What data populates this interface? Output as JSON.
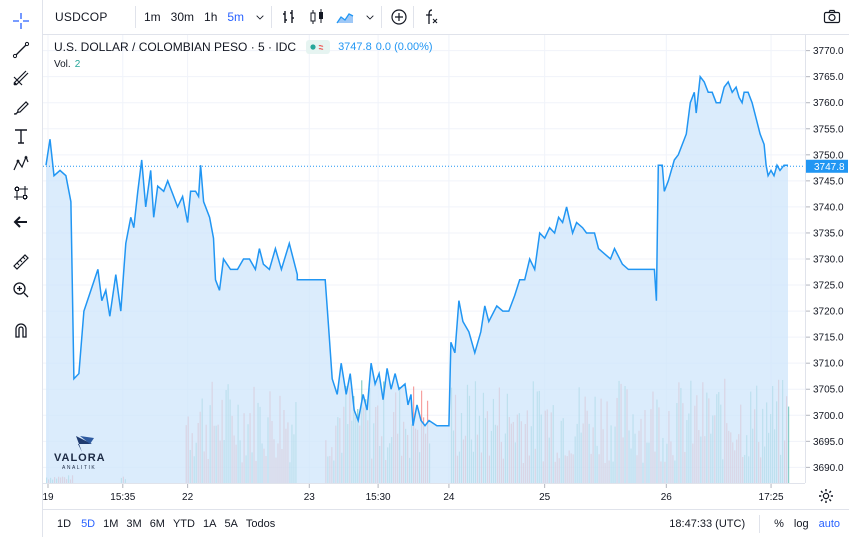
{
  "toolbar": {
    "symbol": "USDCOP",
    "intervals": [
      "1m",
      "30m",
      "1h",
      "5m"
    ],
    "active_interval": "5m"
  },
  "legend": {
    "title": "U.S. DOLLAR / COLOMBIAN PESO · 5 · IDC",
    "last": "3747.8",
    "change": "0.0 (0.00%)",
    "volume_label": "Vol.",
    "volume_value": "2"
  },
  "logo": {
    "name": "VALORA",
    "sub": "ANALITIK"
  },
  "bottom": {
    "ranges": [
      "1D",
      "5D",
      "1M",
      "3M",
      "6M",
      "YTD",
      "1A",
      "5A",
      "Todos"
    ],
    "active_range": "5D",
    "clock": "18:47:33 (UTC)",
    "percent": "%",
    "log": "log",
    "auto": "auto"
  },
  "colors": {
    "line": "#2196f3",
    "fill": "#cfe6fb",
    "vol_up": "#26a69a",
    "vol_down": "#ef5350",
    "grid": "#f0f3fa"
  },
  "chart_data": {
    "type": "area",
    "title": "U.S. DOLLAR / COLOMBIAN PESO · 5 · IDC",
    "ylim": [
      3687,
      3773
    ],
    "yticks": [
      3690,
      3695,
      3700,
      3705,
      3710,
      3715,
      3720,
      3725,
      3730,
      3735,
      3740,
      3745,
      3750,
      3755,
      3760,
      3765,
      3770
    ],
    "last_price": 3747.8,
    "xticks": [
      {
        "label": "19",
        "index": 2
      },
      {
        "label": "15:35",
        "index": 77
      },
      {
        "label": "22",
        "index": 142
      },
      {
        "label": "23",
        "index": 264
      },
      {
        "label": "15:30",
        "index": 333
      },
      {
        "label": "24",
        "index": 404
      },
      {
        "label": "25",
        "index": 500
      },
      {
        "label": "26",
        "index": 622
      },
      {
        "label": "17:25",
        "index": 727
      }
    ],
    "n_points": 745,
    "series": [
      {
        "name": "USDCOP",
        "points": [
          [
            0,
            3748
          ],
          [
            4,
            3753
          ],
          [
            8,
            3746
          ],
          [
            14,
            3747
          ],
          [
            20,
            3746
          ],
          [
            25,
            3741
          ],
          [
            28,
            3707
          ],
          [
            33,
            3708
          ],
          [
            38,
            3720
          ],
          [
            45,
            3724
          ],
          [
            52,
            3728
          ],
          [
            56,
            3722
          ],
          [
            60,
            3724
          ],
          [
            64,
            3719
          ],
          [
            70,
            3727
          ],
          [
            75,
            3720
          ],
          [
            80,
            3733
          ],
          [
            85,
            3738
          ],
          [
            88,
            3736
          ],
          [
            92,
            3743
          ],
          [
            96,
            3749
          ],
          [
            100,
            3740
          ],
          [
            105,
            3747
          ],
          [
            108,
            3738
          ],
          [
            112,
            3744
          ],
          [
            118,
            3743
          ],
          [
            122,
            3745
          ],
          [
            128,
            3742
          ],
          [
            132,
            3740
          ],
          [
            137,
            3742
          ],
          [
            142,
            3737
          ],
          [
            145,
            3743
          ],
          [
            150,
            3743
          ],
          [
            153,
            3742
          ],
          [
            155,
            3748
          ],
          [
            158,
            3741
          ],
          [
            164,
            3738
          ],
          [
            168,
            3734
          ],
          [
            170,
            3726
          ],
          [
            174,
            3724
          ],
          [
            178,
            3730
          ],
          [
            185,
            3728
          ],
          [
            192,
            3728
          ],
          [
            198,
            3730
          ],
          [
            204,
            3730
          ],
          [
            210,
            3728
          ],
          [
            214,
            3732
          ],
          [
            218,
            3729
          ],
          [
            224,
            3728
          ],
          [
            230,
            3732
          ],
          [
            236,
            3728
          ],
          [
            244,
            3733
          ],
          [
            252,
            3727
          ],
          [
            252,
            3726
          ],
          [
            262,
            3726
          ],
          [
            280,
            3726
          ],
          [
            283,
            3718
          ],
          [
            287,
            3707
          ],
          [
            292,
            3704
          ],
          [
            296,
            3710
          ],
          [
            301,
            3704
          ],
          [
            305,
            3708
          ],
          [
            309,
            3701
          ],
          [
            313,
            3699
          ],
          [
            318,
            3704
          ],
          [
            322,
            3701
          ],
          [
            326,
            3710
          ],
          [
            330,
            3706
          ],
          [
            334,
            3708
          ],
          [
            338,
            3703
          ],
          [
            342,
            3709
          ],
          [
            346,
            3705
          ],
          [
            350,
            3708
          ],
          [
            354,
            3705
          ],
          [
            360,
            3706
          ],
          [
            363,
            3702
          ],
          [
            366,
            3704
          ],
          [
            368,
            3698
          ],
          [
            372,
            3702
          ],
          [
            376,
            3699
          ],
          [
            380,
            3698
          ],
          [
            384,
            3699
          ],
          [
            392,
            3698
          ],
          [
            404,
            3698
          ],
          [
            406,
            3714
          ],
          [
            410,
            3712
          ],
          [
            414,
            3722
          ],
          [
            418,
            3718
          ],
          [
            424,
            3716
          ],
          [
            430,
            3712
          ],
          [
            436,
            3716
          ],
          [
            440,
            3721
          ],
          [
            444,
            3718
          ],
          [
            452,
            3721
          ],
          [
            458,
            3720
          ],
          [
            464,
            3720
          ],
          [
            470,
            3723
          ],
          [
            475,
            3726
          ],
          [
            480,
            3726
          ],
          [
            485,
            3730
          ],
          [
            490,
            3728
          ],
          [
            495,
            3735
          ],
          [
            500,
            3734
          ],
          [
            505,
            3736
          ],
          [
            510,
            3735
          ],
          [
            514,
            3738
          ],
          [
            518,
            3737
          ],
          [
            522,
            3740
          ],
          [
            528,
            3735
          ],
          [
            532,
            3737
          ],
          [
            538,
            3736
          ],
          [
            542,
            3735
          ],
          [
            550,
            3735
          ],
          [
            554,
            3732
          ],
          [
            560,
            3731
          ],
          [
            566,
            3730
          ],
          [
            570,
            3732
          ],
          [
            578,
            3729
          ],
          [
            584,
            3728
          ],
          [
            590,
            3728
          ],
          [
            600,
            3728
          ],
          [
            605,
            3728
          ],
          [
            610,
            3728
          ],
          [
            612,
            3722
          ],
          [
            614,
            3748
          ],
          [
            618,
            3748
          ],
          [
            620,
            3743
          ],
          [
            624,
            3745
          ],
          [
            630,
            3749
          ],
          [
            634,
            3750
          ],
          [
            638,
            3752
          ],
          [
            642,
            3754
          ],
          [
            646,
            3760
          ],
          [
            650,
            3762
          ],
          [
            652,
            3758
          ],
          [
            656,
            3765
          ],
          [
            660,
            3764
          ],
          [
            664,
            3762
          ],
          [
            668,
            3762
          ],
          [
            672,
            3760
          ],
          [
            676,
            3760
          ],
          [
            680,
            3763
          ],
          [
            684,
            3764
          ],
          [
            688,
            3762
          ],
          [
            692,
            3763
          ],
          [
            695,
            3761
          ],
          [
            698,
            3760
          ],
          [
            700,
            3762
          ],
          [
            704,
            3762
          ],
          [
            708,
            3760
          ],
          [
            712,
            3757
          ],
          [
            716,
            3754
          ],
          [
            720,
            3752
          ],
          [
            722,
            3748
          ],
          [
            724,
            3746
          ],
          [
            727,
            3747
          ],
          [
            730,
            3746
          ],
          [
            733,
            3748
          ],
          [
            736,
            3747
          ],
          [
            740,
            3748
          ],
          [
            744,
            3748
          ]
        ]
      },
      {
        "name": "Volume",
        "segments": [
          [
            0,
            27
          ],
          [
            75,
            80
          ],
          [
            140,
            251
          ],
          [
            280,
            384
          ],
          [
            406,
            610
          ],
          [
            612,
            744
          ]
        ]
      }
    ]
  }
}
